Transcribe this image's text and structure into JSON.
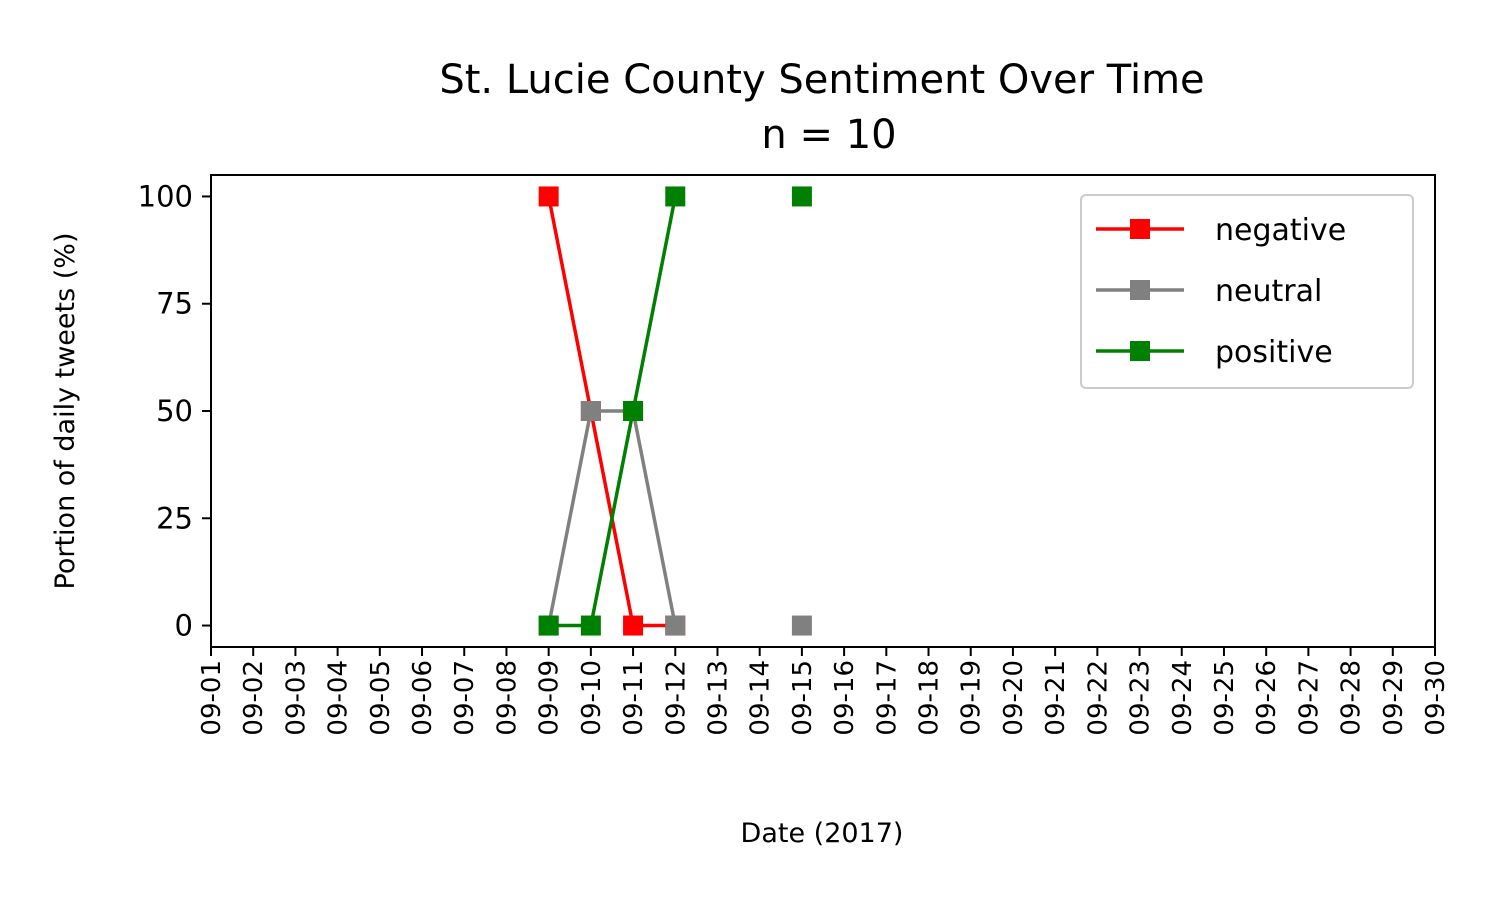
{
  "chart_data": {
    "type": "line",
    "title": "St. Lucie County Sentiment Over Time",
    "subtitle": "n = 10",
    "xlabel": "Date (2017)",
    "ylabel": "Portion of daily tweets (%)",
    "x_ticks": [
      "09-01",
      "09-02",
      "09-03",
      "09-04",
      "09-05",
      "09-06",
      "09-07",
      "09-08",
      "09-09",
      "09-10",
      "09-11",
      "09-12",
      "09-13",
      "09-14",
      "09-15",
      "09-16",
      "09-17",
      "09-18",
      "09-19",
      "09-20",
      "09-21",
      "09-22",
      "09-23",
      "09-24",
      "09-25",
      "09-26",
      "09-27",
      "09-28",
      "09-29",
      "09-30"
    ],
    "y_ticks": [
      0,
      25,
      50,
      75,
      100
    ],
    "ylim": [
      -5,
      105
    ],
    "grid": false,
    "legend_position": "top-right",
    "series": [
      {
        "name": "negative",
        "color": "#ff0000",
        "marker": "square",
        "segments": [
          [
            {
              "x": "09-09",
              "y": 100
            },
            {
              "x": "09-10",
              "y": 50
            },
            {
              "x": "09-11",
              "y": 0
            },
            {
              "x": "09-12",
              "y": 0
            }
          ]
        ]
      },
      {
        "name": "neutral",
        "color": "#808080",
        "marker": "square",
        "segments": [
          [
            {
              "x": "09-09",
              "y": 0
            },
            {
              "x": "09-10",
              "y": 50
            },
            {
              "x": "09-11",
              "y": 50
            },
            {
              "x": "09-12",
              "y": 0
            }
          ],
          [
            {
              "x": "09-15",
              "y": 0
            }
          ]
        ]
      },
      {
        "name": "positive",
        "color": "#008000",
        "marker": "square",
        "segments": [
          [
            {
              "x": "09-09",
              "y": 0
            },
            {
              "x": "09-10",
              "y": 0
            },
            {
              "x": "09-11",
              "y": 50
            },
            {
              "x": "09-12",
              "y": 100
            }
          ],
          [
            {
              "x": "09-15",
              "y": 100
            }
          ]
        ]
      }
    ]
  }
}
